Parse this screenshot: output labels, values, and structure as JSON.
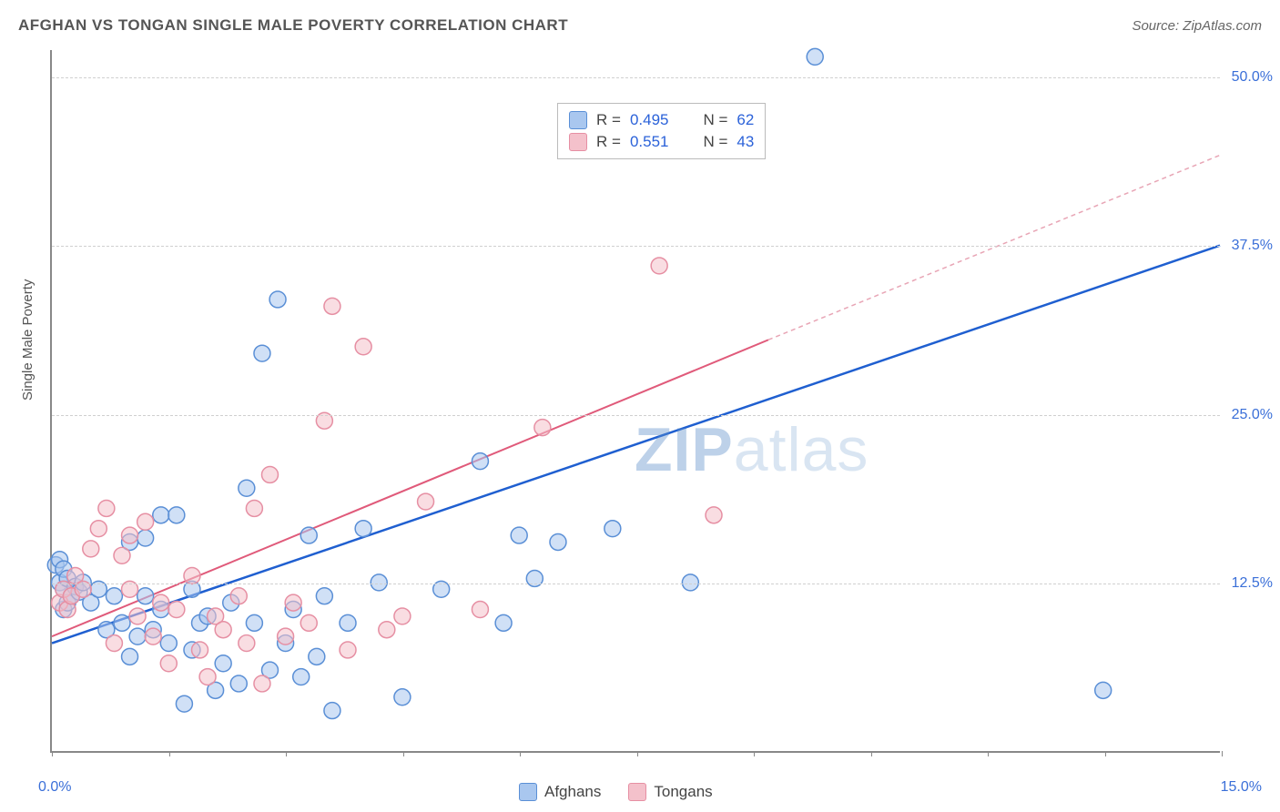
{
  "title": "AFGHAN VS TONGAN SINGLE MALE POVERTY CORRELATION CHART",
  "source": "Source: ZipAtlas.com",
  "y_axis_label": "Single Male Poverty",
  "watermark": {
    "part1": "ZIP",
    "part2": "atlas"
  },
  "chart": {
    "type": "scatter",
    "background_color": "#ffffff",
    "grid_color": "#d0d0d0",
    "axis_color": "#888888",
    "xlim": [
      0,
      15
    ],
    "ylim": [
      0,
      52
    ],
    "x_ticks": [
      0,
      1.5,
      3,
      4.5,
      6,
      7.5,
      9,
      10.5,
      12,
      13.5,
      15
    ],
    "x_tick_labels": {
      "start": "0.0%",
      "end": "15.0%"
    },
    "y_gridlines": [
      12.5,
      25.0,
      37.5,
      50.0
    ],
    "y_tick_labels": [
      "12.5%",
      "25.0%",
      "37.5%",
      "50.0%"
    ],
    "label_color": "#3a6fd8",
    "label_fontsize": 16,
    "title_color": "#555555",
    "title_fontsize": 17,
    "marker_radius": 9,
    "marker_opacity": 0.55,
    "marker_stroke_width": 1.5,
    "series": [
      {
        "name": "Afghans",
        "fill_color": "#a9c7ef",
        "stroke_color": "#5a8fd6",
        "R_label": "R = ",
        "R": "0.495",
        "N_label": "N = ",
        "N": "62",
        "trend": {
          "x1": 0,
          "y1": 8.0,
          "x2": 15,
          "y2": 37.5,
          "color": "#1f5fd0",
          "width": 2.5,
          "dash": "none"
        },
        "points": [
          [
            0.05,
            13.8
          ],
          [
            0.1,
            12.5
          ],
          [
            0.1,
            14.2
          ],
          [
            0.15,
            10.5
          ],
          [
            0.15,
            12.0
          ],
          [
            0.15,
            13.5
          ],
          [
            0.2,
            11.0
          ],
          [
            0.2,
            12.8
          ],
          [
            0.25,
            11.5
          ],
          [
            0.3,
            12.2
          ],
          [
            0.35,
            11.8
          ],
          [
            0.4,
            12.5
          ],
          [
            0.5,
            11.0
          ],
          [
            0.6,
            12.0
          ],
          [
            0.7,
            9.0
          ],
          [
            0.8,
            11.5
          ],
          [
            0.9,
            9.5
          ],
          [
            1.0,
            15.5
          ],
          [
            1.0,
            7.0
          ],
          [
            1.1,
            8.5
          ],
          [
            1.2,
            15.8
          ],
          [
            1.2,
            11.5
          ],
          [
            1.3,
            9.0
          ],
          [
            1.4,
            17.5
          ],
          [
            1.4,
            10.5
          ],
          [
            1.5,
            8.0
          ],
          [
            1.6,
            17.5
          ],
          [
            1.7,
            3.5
          ],
          [
            1.8,
            12.0
          ],
          [
            1.8,
            7.5
          ],
          [
            1.9,
            9.5
          ],
          [
            2.0,
            10.0
          ],
          [
            2.1,
            4.5
          ],
          [
            2.2,
            6.5
          ],
          [
            2.3,
            11.0
          ],
          [
            2.4,
            5.0
          ],
          [
            2.5,
            19.5
          ],
          [
            2.6,
            9.5
          ],
          [
            2.7,
            29.5
          ],
          [
            2.8,
            6.0
          ],
          [
            2.9,
            33.5
          ],
          [
            3.0,
            8.0
          ],
          [
            3.1,
            10.5
          ],
          [
            3.2,
            5.5
          ],
          [
            3.3,
            16.0
          ],
          [
            3.4,
            7.0
          ],
          [
            3.5,
            11.5
          ],
          [
            3.6,
            3.0
          ],
          [
            3.8,
            9.5
          ],
          [
            4.0,
            16.5
          ],
          [
            4.2,
            12.5
          ],
          [
            4.5,
            4.0
          ],
          [
            5.0,
            12.0
          ],
          [
            5.5,
            21.5
          ],
          [
            5.8,
            9.5
          ],
          [
            6.0,
            16.0
          ],
          [
            6.2,
            12.8
          ],
          [
            6.5,
            15.5
          ],
          [
            7.2,
            16.5
          ],
          [
            8.2,
            12.5
          ],
          [
            9.8,
            51.5
          ],
          [
            13.5,
            4.5
          ]
        ]
      },
      {
        "name": "Tongans",
        "fill_color": "#f4c1cb",
        "stroke_color": "#e68fa3",
        "R_label": "R = ",
        "R": "0.551",
        "N_label": "N = ",
        "N": "43",
        "trend_solid": {
          "x1": 0,
          "y1": 8.5,
          "x2": 9.2,
          "y2": 30.5,
          "color": "#e05a7a",
          "width": 2,
          "dash": "none"
        },
        "trend_dashed": {
          "x1": 9.2,
          "y1": 30.5,
          "x2": 15,
          "y2": 44.2,
          "color": "#e8a5b5",
          "width": 1.5,
          "dash": "5,4"
        },
        "points": [
          [
            0.1,
            11.0
          ],
          [
            0.15,
            12.0
          ],
          [
            0.2,
            10.5
          ],
          [
            0.25,
            11.5
          ],
          [
            0.3,
            13.0
          ],
          [
            0.4,
            12.0
          ],
          [
            0.5,
            15.0
          ],
          [
            0.6,
            16.5
          ],
          [
            0.7,
            18.0
          ],
          [
            0.8,
            8.0
          ],
          [
            0.9,
            14.5
          ],
          [
            1.0,
            16.0
          ],
          [
            1.0,
            12.0
          ],
          [
            1.1,
            10.0
          ],
          [
            1.2,
            17.0
          ],
          [
            1.3,
            8.5
          ],
          [
            1.4,
            11.0
          ],
          [
            1.5,
            6.5
          ],
          [
            1.6,
            10.5
          ],
          [
            1.8,
            13.0
          ],
          [
            1.9,
            7.5
          ],
          [
            2.0,
            5.5
          ],
          [
            2.1,
            10.0
          ],
          [
            2.2,
            9.0
          ],
          [
            2.4,
            11.5
          ],
          [
            2.5,
            8.0
          ],
          [
            2.6,
            18.0
          ],
          [
            2.7,
            5.0
          ],
          [
            2.8,
            20.5
          ],
          [
            3.0,
            8.5
          ],
          [
            3.1,
            11.0
          ],
          [
            3.3,
            9.5
          ],
          [
            3.5,
            24.5
          ],
          [
            3.6,
            33.0
          ],
          [
            3.8,
            7.5
          ],
          [
            4.0,
            30.0
          ],
          [
            4.3,
            9.0
          ],
          [
            4.5,
            10.0
          ],
          [
            4.8,
            18.5
          ],
          [
            5.5,
            10.5
          ],
          [
            6.3,
            24.0
          ],
          [
            7.8,
            36.0
          ],
          [
            8.5,
            17.5
          ]
        ]
      }
    ]
  },
  "legend": {
    "series1": "Afghans",
    "series2": "Tongans"
  }
}
